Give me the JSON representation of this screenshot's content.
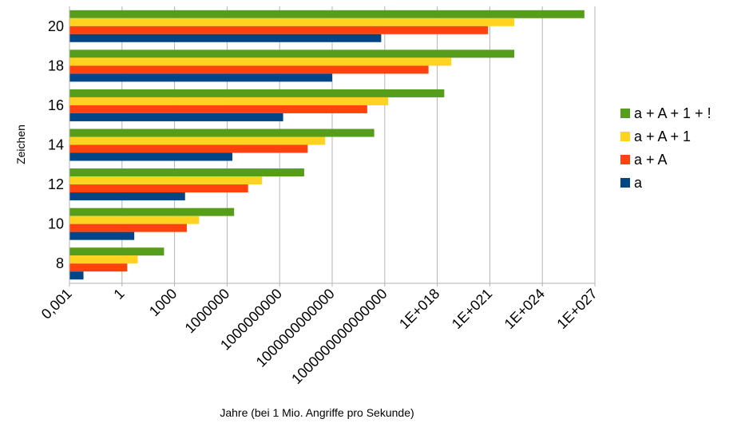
{
  "chart_data": {
    "type": "bar",
    "orientation": "horizontal",
    "x_scale": "log",
    "xlabel": "Jahre (bei 1 Mio. Angriffe pro Sekunde)",
    "ylabel": "Zeichen",
    "categories": [
      "8",
      "10",
      "12",
      "14",
      "16",
      "18",
      "20"
    ],
    "x_ticks": [
      {
        "label": "0,001",
        "exp": -3
      },
      {
        "label": "1",
        "exp": 0
      },
      {
        "label": "1000",
        "exp": 3
      },
      {
        "label": "1000000",
        "exp": 6
      },
      {
        "label": "1000000000",
        "exp": 9
      },
      {
        "label": "1000000000000",
        "exp": 12
      },
      {
        "label": "1000000000000000",
        "exp": 15
      },
      {
        "label": "1E+018",
        "exp": 18
      },
      {
        "label": "1E+021",
        "exp": 21
      },
      {
        "label": "1E+024",
        "exp": 24
      },
      {
        "label": "1E+027",
        "exp": 27
      }
    ],
    "xlim_exp": [
      -3,
      27
    ],
    "grid": "vertical",
    "legend_position": "right",
    "series": [
      {
        "name": "a + A + 1 + !",
        "color": "#579D1C",
        "log10_values": [
          2.4,
          6.4,
          10.4,
          14.4,
          18.4,
          22.4,
          26.4
        ]
      },
      {
        "name": "a + A + 1",
        "color": "#FFD320",
        "log10_values": [
          0.9,
          4.4,
          8.0,
          11.6,
          15.2,
          18.8,
          22.4
        ]
      },
      {
        "name": "a + A",
        "color": "#FF420E",
        "log10_values": [
          0.3,
          3.7,
          7.2,
          10.6,
          14.0,
          17.5,
          20.9
        ]
      },
      {
        "name": "a",
        "color": "#004586",
        "log10_values": [
          -2.2,
          0.7,
          3.6,
          6.3,
          9.2,
          12.0,
          14.8
        ]
      }
    ]
  }
}
